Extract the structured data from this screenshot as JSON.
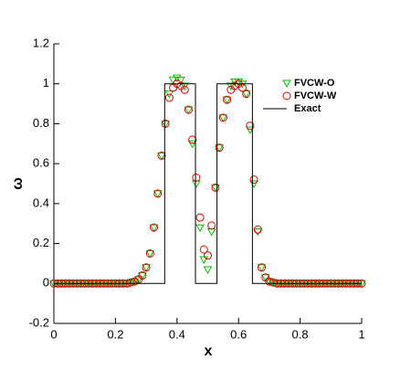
{
  "chart_data": {
    "type": "scatter",
    "xlabel": "x",
    "ylabel": "ω",
    "xlim": [
      0,
      1
    ],
    "xticks": [
      0,
      0.2,
      0.4,
      0.6,
      0.8,
      1
    ],
    "ylim": [
      -0.2,
      1.2
    ],
    "yticks": [
      -0.2,
      0,
      0.2,
      0.4,
      0.6,
      0.8,
      1,
      1.2
    ],
    "legend": "upper right",
    "x": [
      0,
      0.0125,
      0.025,
      0.0375,
      0.05,
      0.0625,
      0.075,
      0.0875,
      0.1,
      0.1125,
      0.125,
      0.1375,
      0.15,
      0.1625,
      0.175,
      0.1875,
      0.2,
      0.2125,
      0.225,
      0.2375,
      0.25,
      0.2625,
      0.275,
      0.2875,
      0.3,
      0.3125,
      0.325,
      0.3375,
      0.35,
      0.3625,
      0.375,
      0.3875,
      0.4,
      0.4125,
      0.425,
      0.4375,
      0.45,
      0.4625,
      0.475,
      0.4875,
      0.5,
      0.5125,
      0.525,
      0.5375,
      0.55,
      0.5625,
      0.575,
      0.5875,
      0.6,
      0.6125,
      0.625,
      0.6375,
      0.65,
      0.6625,
      0.675,
      0.6875,
      0.7,
      0.7125,
      0.725,
      0.7375,
      0.75,
      0.7625,
      0.775,
      0.7875,
      0.8,
      0.8125,
      0.825,
      0.8375,
      0.85,
      0.8625,
      0.875,
      0.8875,
      0.9,
      0.9125,
      0.925,
      0.9375,
      0.95,
      0.9625,
      0.975,
      0.9875,
      1
    ],
    "series": [
      {
        "name": "FVCW-O",
        "color": "#00c000",
        "marker": "triangle",
        "values": [
          0,
          0,
          0,
          0,
          0,
          0,
          0,
          0,
          0,
          0,
          0,
          0,
          0,
          0,
          0,
          0,
          0,
          0,
          0,
          0,
          0.005,
          0.01,
          0.02,
          0.04,
          0.08,
          0.15,
          0.28,
          0.45,
          0.64,
          0.8,
          0.95,
          1.02,
          1.03,
          1.02,
          0.99,
          0.87,
          0.7,
          0.5,
          0.28,
          0.12,
          0.07,
          0.26,
          0.48,
          0.68,
          0.83,
          0.92,
          0.99,
          1.01,
          1.01,
          1.0,
          0.95,
          0.77,
          0.5,
          0.26,
          0.08,
          0.03,
          0.01,
          0.005,
          0,
          0,
          0,
          0,
          0,
          0,
          0,
          0,
          0,
          0,
          0,
          0,
          0,
          0,
          0,
          0,
          0,
          0,
          0,
          0,
          0,
          0,
          0
        ]
      },
      {
        "name": "FVCW-W",
        "color": "#e00000",
        "marker": "circle",
        "values": [
          0,
          0,
          0,
          0,
          0,
          0,
          0,
          0,
          0,
          0,
          0,
          0,
          0,
          0,
          0,
          0,
          0,
          0,
          0,
          0,
          0.005,
          0.01,
          0.02,
          0.04,
          0.08,
          0.15,
          0.28,
          0.45,
          0.64,
          0.8,
          0.93,
          0.98,
          1.0,
          0.99,
          0.97,
          0.87,
          0.72,
          0.53,
          0.33,
          0.17,
          0.14,
          0.29,
          0.48,
          0.68,
          0.83,
          0.92,
          0.97,
          0.99,
          1.0,
          0.98,
          0.95,
          0.79,
          0.52,
          0.27,
          0.08,
          0.03,
          0.01,
          0.005,
          0,
          0,
          0,
          0,
          0,
          0,
          0,
          0,
          0,
          0,
          0,
          0,
          0,
          0,
          0,
          0,
          0,
          0,
          0,
          0,
          0,
          0,
          0
        ]
      },
      {
        "name": "Exact",
        "color": "#000000",
        "marker": "line",
        "x": [
          0,
          0.36,
          0.36,
          0.46,
          0.46,
          0.53,
          0.53,
          0.645,
          0.645,
          1
        ],
        "values": [
          0,
          0,
          1,
          1,
          0,
          0,
          1,
          1,
          0,
          0
        ]
      }
    ]
  }
}
